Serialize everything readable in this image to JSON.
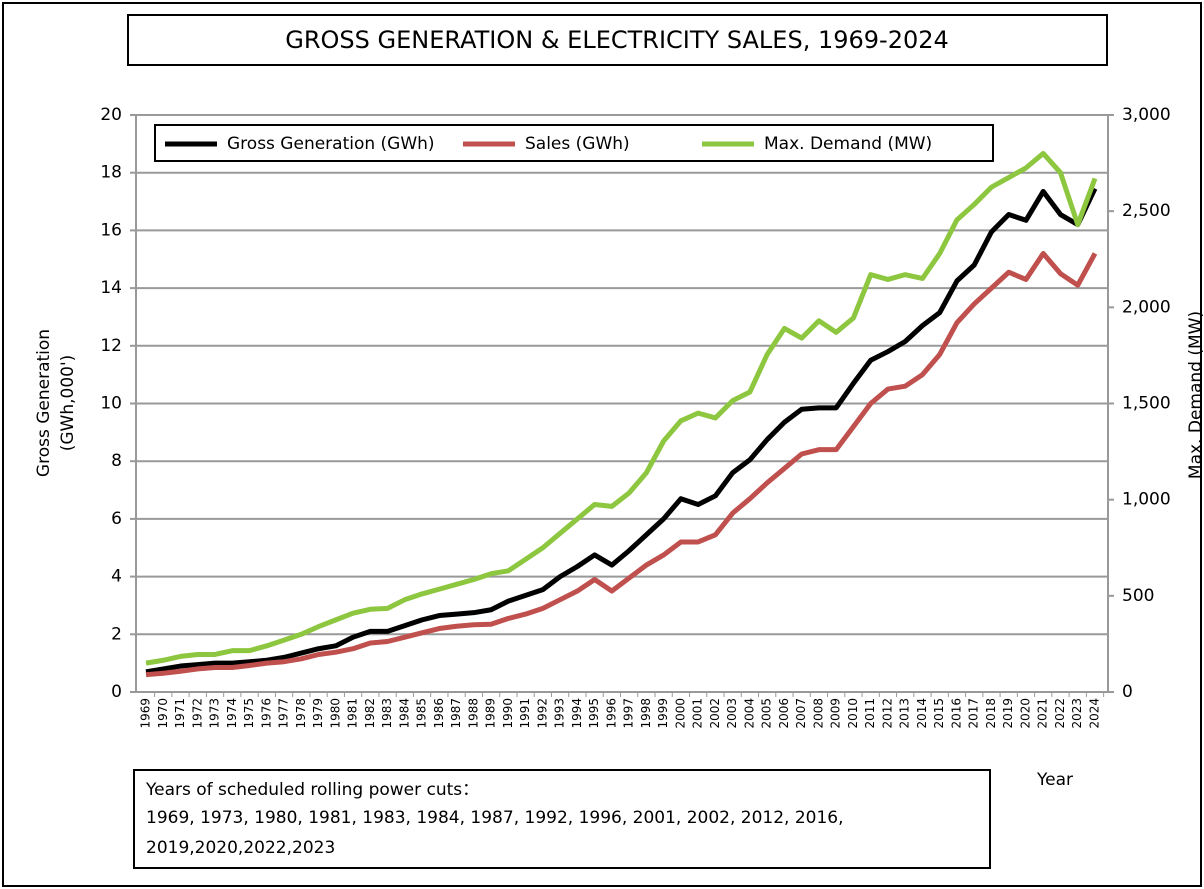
{
  "chart_data": {
    "type": "line",
    "title": "GROSS GENERATION & ELECTRICITY SALES, 1969-2024",
    "y_label": [
      "Gross Generation",
      "(GWh,000')"
    ],
    "y2_label": "Max. Demand (MW)",
    "x_label": "Year",
    "note": [
      "Years of scheduled rolling power cuts：",
      "1969, 1973, 1980, 1981, 1983, 1984, 1987, 1992, 1996, 2001, 2002, 2012, 2016,",
      "2019,2020,2022,2023"
    ],
    "categories": [
      "1969",
      "1970",
      "1971",
      "1972",
      "1973",
      "1974",
      "1975",
      "1976",
      "1977",
      "1978",
      "1979",
      "1980",
      "1981",
      "1982",
      "1983",
      "1984",
      "1985",
      "1986",
      "1987",
      "1988",
      "1989",
      "1990",
      "1991",
      "1992",
      "1993",
      "1994",
      "1995",
      "1996",
      "1997",
      "1998",
      "1999",
      "2000",
      "2001",
      "2002",
      "2003",
      "2004",
      "2005",
      "2006",
      "2007",
      "2008",
      "2009",
      "2010",
      "2011",
      "2012",
      "2013",
      "2014",
      "2015",
      "2016",
      "2017",
      "2018",
      "2019",
      "2020",
      "2021",
      "2022",
      "2023",
      "2024"
    ],
    "series": [
      {
        "name": "Gross Generation (GWh)",
        "color": "#000000",
        "values": [
          0.7,
          0.8,
          0.9,
          0.95,
          1.0,
          1.0,
          1.05,
          1.1,
          1.2,
          1.35,
          1.5,
          1.6,
          1.9,
          2.1,
          2.1,
          2.3,
          2.5,
          2.65,
          2.7,
          2.75,
          2.85,
          3.15,
          3.35,
          3.55,
          4.0,
          4.35,
          4.75,
          4.4,
          4.9,
          5.45,
          6.0,
          6.7,
          6.5,
          6.8,
          7.6,
          8.05,
          8.75,
          9.35,
          9.8,
          9.85,
          9.85,
          10.7,
          11.5,
          11.8,
          12.15,
          12.7,
          13.15,
          14.25,
          14.8,
          15.95,
          16.55,
          16.35,
          17.35,
          16.55,
          16.2,
          17.45
        ]
      },
      {
        "name": "Sales (GWh)",
        "color": "#c0504d",
        "values": [
          0.6,
          0.65,
          0.72,
          0.8,
          0.85,
          0.85,
          0.92,
          1.0,
          1.05,
          1.15,
          1.3,
          1.38,
          1.5,
          1.7,
          1.75,
          1.9,
          2.05,
          2.2,
          2.28,
          2.33,
          2.35,
          2.55,
          2.7,
          2.9,
          3.2,
          3.5,
          3.9,
          3.5,
          3.95,
          4.4,
          4.75,
          5.2,
          5.2,
          5.45,
          6.2,
          6.7,
          7.25,
          7.75,
          8.25,
          8.4,
          8.4,
          9.2,
          10.0,
          10.5,
          10.6,
          11.0,
          11.7,
          12.8,
          13.45,
          14.0,
          14.55,
          14.3,
          15.2,
          14.5,
          14.1,
          15.2
        ]
      },
      {
        "name": "Max. Demand (MW)",
        "color": "#8dc63f",
        "axis": "y2",
        "values": [
          150,
          165,
          185,
          195,
          195,
          215,
          215,
          240,
          270,
          300,
          340,
          375,
          410,
          430,
          435,
          480,
          510,
          535,
          560,
          585,
          615,
          630,
          690,
          750,
          825,
          900,
          975,
          965,
          1035,
          1140,
          1305,
          1410,
          1450,
          1425,
          1515,
          1560,
          1755,
          1890,
          1840,
          1930,
          1870,
          1945,
          2170,
          2145,
          2170,
          2150,
          2280,
          2455,
          2535,
          2625,
          2675,
          2725,
          2800,
          2700,
          2430,
          2670
        ]
      }
    ],
    "ylim": [
      0,
      20
    ],
    "yticks": [
      0,
      2,
      4,
      6,
      8,
      10,
      12,
      14,
      16,
      18,
      20
    ],
    "y2lim": [
      0,
      3000
    ],
    "y2ticks": [
      0,
      500,
      {
        "value": 1000,
        "label": "1,000"
      },
      {
        "value": 1500,
        "label": "1,500"
      },
      {
        "value": 2000,
        "label": "2,000"
      },
      {
        "value": 2500,
        "label": "2,500"
      },
      {
        "value": 3000,
        "label": "3,000"
      }
    ],
    "grid": true,
    "legend": "top-left"
  }
}
